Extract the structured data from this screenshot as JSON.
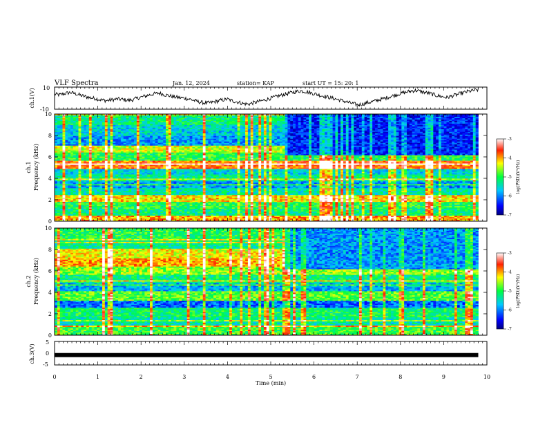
{
  "chart_data": {
    "type": "heatmap",
    "title": "VLF Spectra",
    "date": "Jan. 12, 2024",
    "station": "station= KAP",
    "start_ut": "start UT =  15: 20: 1",
    "xlabel": "Time (min)",
    "xlim": [
      0,
      10
    ],
    "x_ticks": [
      "0",
      "1",
      "2",
      "3",
      "4",
      "5",
      "6",
      "7",
      "8",
      "9",
      "10"
    ],
    "data_end_min": 9.8,
    "panels": [
      {
        "id": "ch1-waveform",
        "type": "line",
        "ylabel": "ch.1(V)",
        "ylim": [
          -10,
          10
        ],
        "y_ticks": [
          "10",
          "-10"
        ],
        "samples": [
          3.5,
          3.0,
          4.2,
          5.1,
          4.0,
          2.5,
          1.2,
          0.3,
          -0.5,
          -1.8,
          -2.2,
          -1.5,
          -0.8,
          -1.2,
          -2.0,
          -1.4,
          0.2,
          1.5,
          2.8,
          3.9,
          4.5,
          3.2,
          2.1,
          1.0,
          0.4,
          -0.2,
          -1.1,
          -2.6,
          -3.8,
          -4.5,
          -3.9,
          -2.8,
          -1.7,
          -0.9,
          -2.4,
          -3.5,
          -4.8,
          -5.5,
          -4.2,
          -3.1,
          -1.9,
          -0.5,
          0.8,
          2.2,
          3.4,
          4.6,
          5.8,
          6.5,
          5.9,
          4.8,
          3.6,
          2.3,
          1.2,
          0.1,
          -1.0,
          -2.2,
          -3.6,
          -4.9,
          -6.1,
          -5.2,
          -4.0,
          -2.9,
          -1.5,
          -0.3,
          1.1,
          2.6,
          4.0,
          5.2,
          6.3,
          7.0,
          6.1,
          5.0,
          3.8,
          2.5,
          1.4,
          0.6,
          1.9,
          3.3,
          4.7,
          5.9,
          6.8,
          7.4
        ]
      },
      {
        "id": "ch1-spectrogram",
        "type": "heatmap",
        "ylabel": "ch.1\nFrequency (kHz)",
        "ylim": [
          0,
          10
        ],
        "y_ticks": [
          "0",
          "2",
          "4",
          "6",
          "8",
          "10"
        ],
        "colorbar": {
          "label": "log(PSD)(V²/Hz)",
          "range": [
            -7,
            -3
          ],
          "ticks": [
            "-3",
            "-4",
            "-5",
            "-6",
            "-7"
          ]
        },
        "band_levels_kHz": [
          {
            "f": 9.5,
            "v": -5.2
          },
          {
            "f": 8.5,
            "v": -5.6
          },
          {
            "f": 7.5,
            "v": -5.9
          },
          {
            "f": 6.7,
            "v": -4.4
          },
          {
            "f": 6.0,
            "v": -5.0
          },
          {
            "f": 5.2,
            "v": -3.8
          },
          {
            "f": 4.6,
            "v": -5.6
          },
          {
            "f": 4.0,
            "v": -5.3
          },
          {
            "f": 3.4,
            "v": -5.9
          },
          {
            "f": 2.8,
            "v": -5.4
          },
          {
            "f": 2.2,
            "v": -4.2
          },
          {
            "f": 1.5,
            "v": -5.0
          },
          {
            "f": 0.8,
            "v": -5.2
          },
          {
            "f": 0.2,
            "v": -4.0
          }
        ],
        "later_change_min": 5.3,
        "later_high_band_level": -6.4
      },
      {
        "id": "ch2-spectrogram",
        "type": "heatmap",
        "ylabel": "ch.2\nFrequency (kHz)",
        "ylim": [
          0,
          10
        ],
        "y_ticks": [
          "0",
          "2",
          "4",
          "6",
          "8",
          "10"
        ],
        "colorbar": {
          "label": "log(PSD)(V²/Hz)",
          "range": [
            -7,
            -3
          ],
          "ticks": [
            "-3",
            "-4",
            "-5",
            "-6",
            "-7"
          ]
        },
        "band_levels_kHz": [
          {
            "f": 9.4,
            "v": -5.0
          },
          {
            "f": 8.6,
            "v": -5.3
          },
          {
            "f": 7.6,
            "v": -4.3
          },
          {
            "f": 6.8,
            "v": -4.0
          },
          {
            "f": 6.0,
            "v": -4.6
          },
          {
            "f": 5.3,
            "v": -5.2
          },
          {
            "f": 4.5,
            "v": -5.8
          },
          {
            "f": 3.6,
            "v": -4.8
          },
          {
            "f": 2.8,
            "v": -6.1
          },
          {
            "f": 2.0,
            "v": -5.1
          },
          {
            "f": 1.3,
            "v": -5.4
          },
          {
            "f": 0.5,
            "v": -4.9
          }
        ],
        "later_change_min": 5.3,
        "later_high_band_level": -5.9
      },
      {
        "id": "ch3-waveform",
        "type": "line",
        "ylabel": "ch.3(V)",
        "ylim": [
          -5,
          5
        ],
        "y_ticks": [
          "5",
          "0",
          "-5"
        ],
        "constant_value": -0.8
      }
    ]
  }
}
